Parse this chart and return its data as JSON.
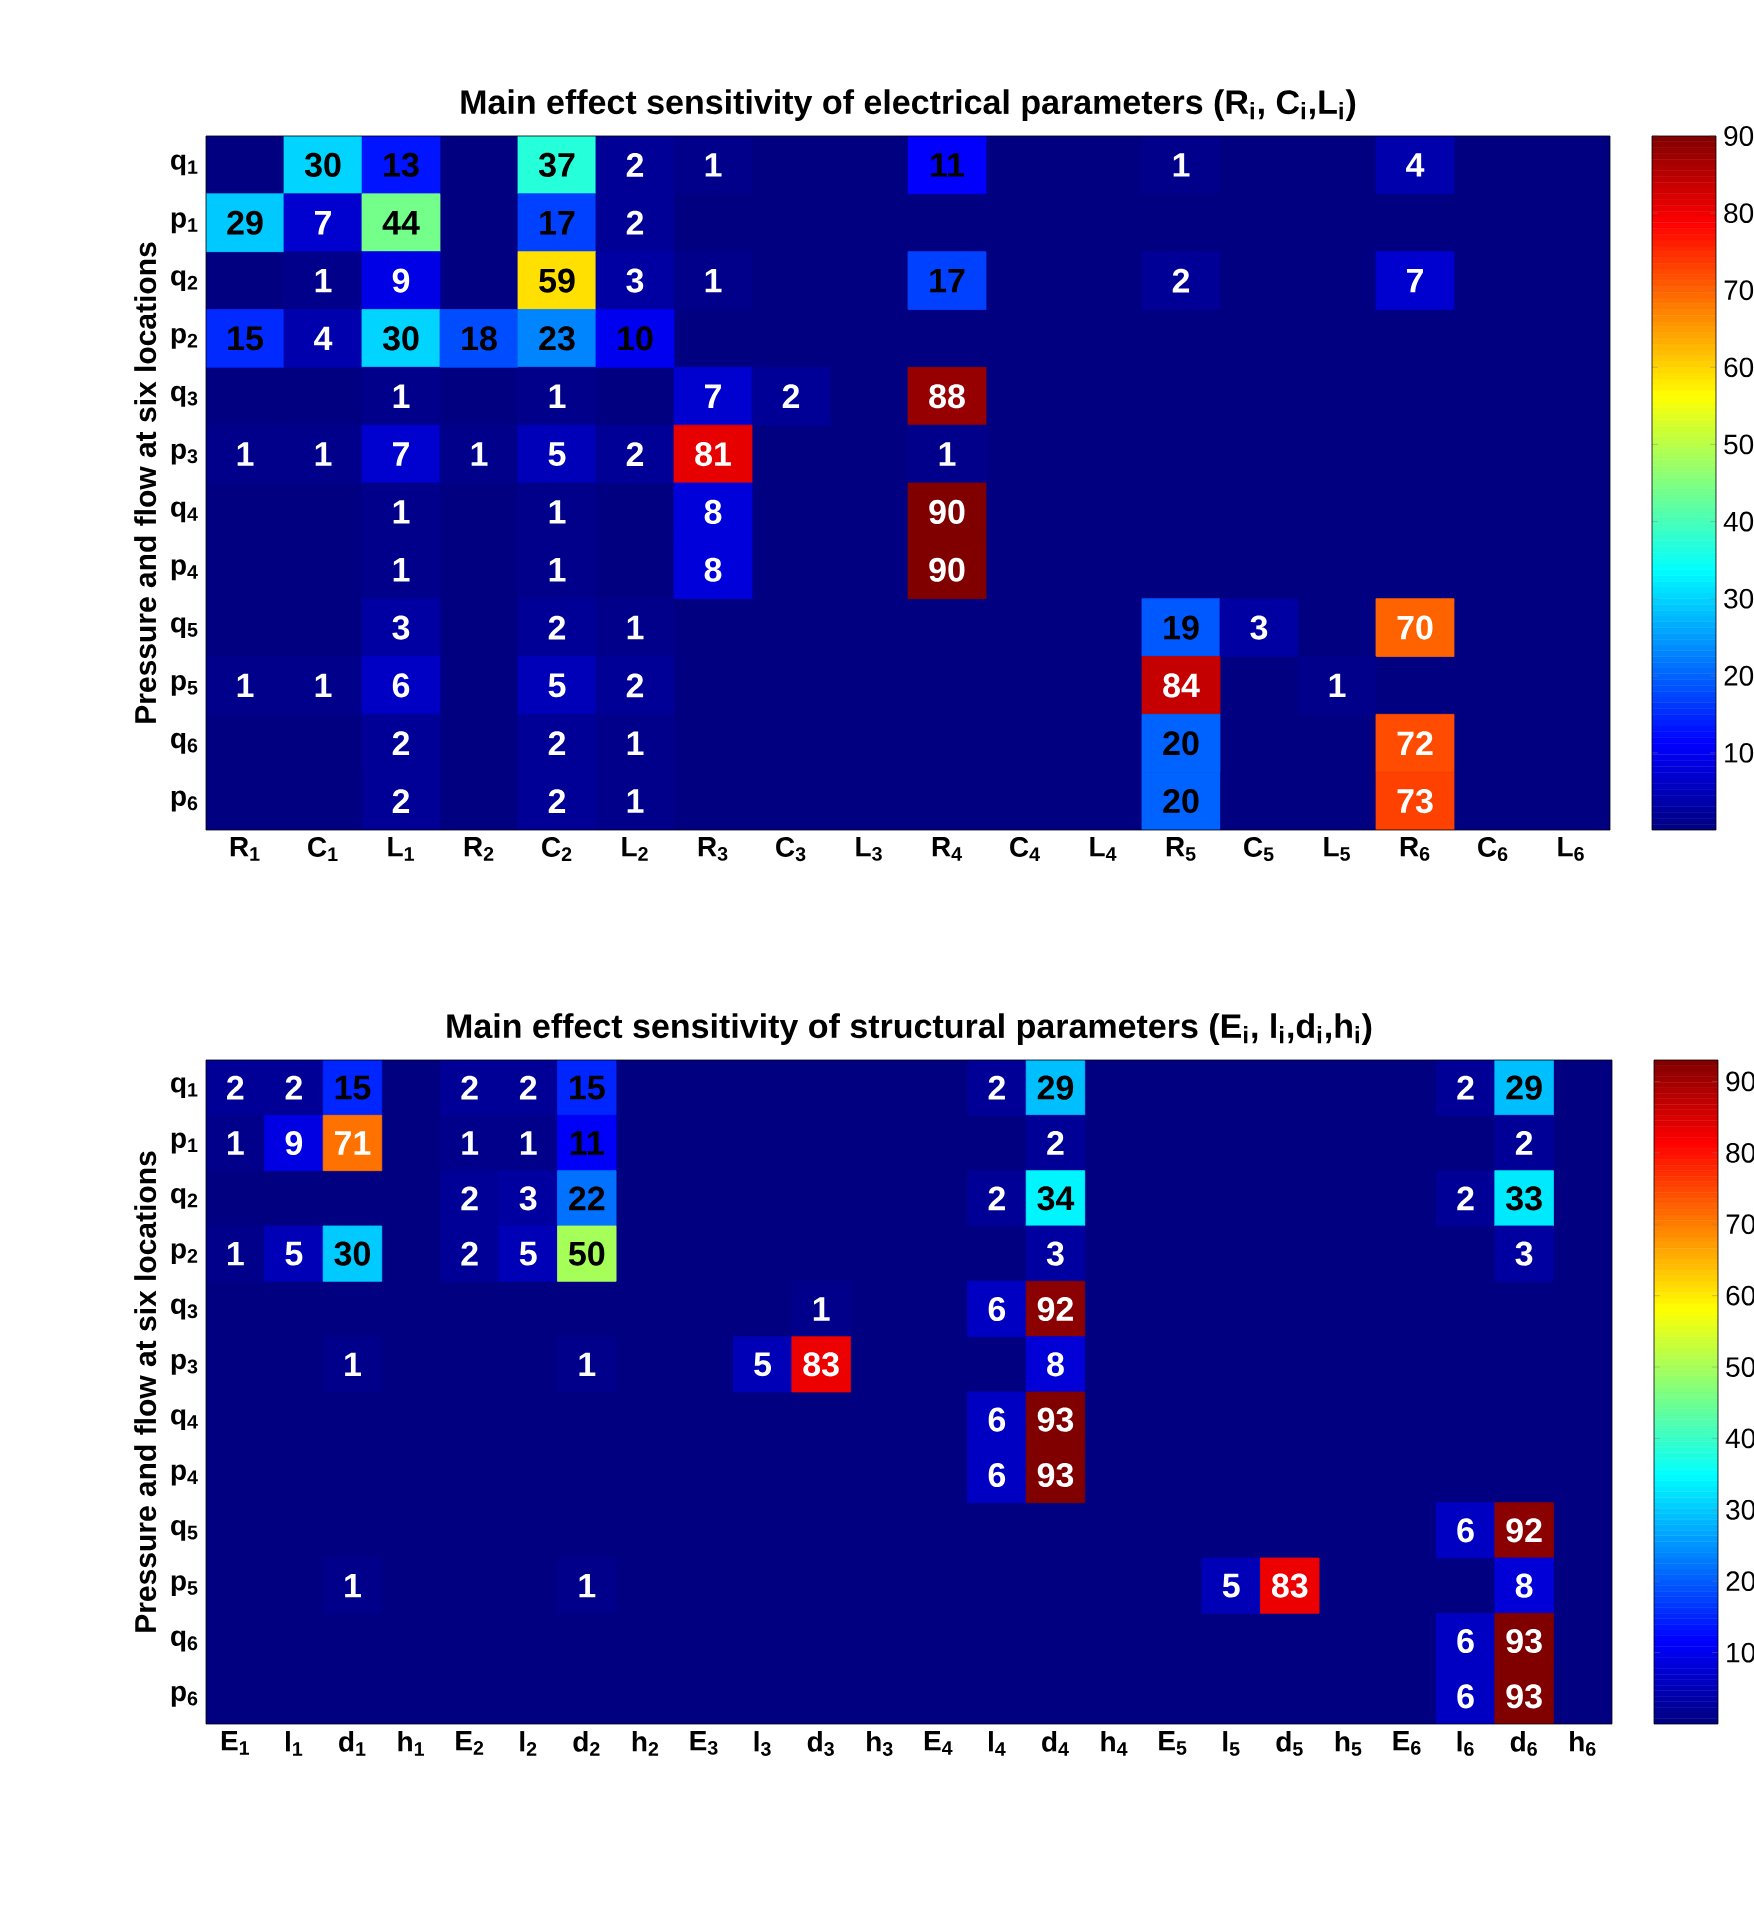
{
  "chart_data": [
    {
      "type": "heatmap",
      "title": "Main effect sensitivity of electrical parameters (R$_{i}$, C$_{i}$,L$_{i}$)",
      "ylabel": "Pressure and flow at six locations",
      "categories": [
        "R$_{1}$",
        "C$_{1}$",
        "L$_{1}$",
        "R$_{2}$",
        "C$_{2}$",
        "L$_{2}$",
        "R$_{3}$",
        "C$_{3}$",
        "L$_{3}$",
        "R$_{4}$",
        "C$_{4}$",
        "L$_{4}$",
        "R$_{5}$",
        "C$_{5}$",
        "L$_{5}$",
        "R$_{6}$",
        "C$_{6}$",
        "L$_{6}$"
      ],
      "y_categories": [
        "q$_{1}$",
        "p$_{1}$",
        "q$_{2}$",
        "p$_{2}$",
        "q$_{3}$",
        "p$_{3}$",
        "q$_{4}$",
        "p$_{4}$",
        "q$_{5}$",
        "p$_{5}$",
        "q$_{6}$",
        "p$_{6}$"
      ],
      "cells": [
        [
          null,
          30,
          13,
          null,
          37,
          2,
          1,
          null,
          null,
          11,
          null,
          null,
          1,
          null,
          null,
          4,
          null,
          null
        ],
        [
          29,
          7,
          44,
          null,
          17,
          2,
          null,
          null,
          null,
          null,
          null,
          null,
          null,
          null,
          null,
          null,
          null,
          null
        ],
        [
          null,
          1,
          9,
          null,
          59,
          3,
          1,
          null,
          null,
          17,
          null,
          null,
          2,
          null,
          null,
          7,
          null,
          null
        ],
        [
          15,
          4,
          30,
          18,
          23,
          10,
          null,
          null,
          null,
          null,
          null,
          null,
          null,
          null,
          null,
          null,
          null,
          null
        ],
        [
          null,
          null,
          1,
          null,
          1,
          null,
          7,
          2,
          null,
          88,
          null,
          null,
          null,
          null,
          null,
          null,
          null,
          null
        ],
        [
          1,
          1,
          7,
          1,
          5,
          2,
          81,
          null,
          null,
          1,
          null,
          null,
          null,
          null,
          null,
          null,
          null,
          null
        ],
        [
          null,
          null,
          1,
          null,
          1,
          null,
          8,
          null,
          null,
          90,
          null,
          null,
          null,
          null,
          null,
          null,
          null,
          null
        ],
        [
          null,
          null,
          1,
          null,
          1,
          null,
          8,
          null,
          null,
          90,
          null,
          null,
          null,
          null,
          null,
          null,
          null,
          null
        ],
        [
          null,
          null,
          3,
          null,
          2,
          1,
          null,
          null,
          null,
          null,
          null,
          null,
          19,
          3,
          null,
          70,
          null,
          null
        ],
        [
          1,
          1,
          6,
          null,
          5,
          2,
          null,
          null,
          null,
          null,
          null,
          null,
          84,
          null,
          1,
          null,
          null,
          null
        ],
        [
          null,
          null,
          2,
          null,
          2,
          1,
          null,
          null,
          null,
          null,
          null,
          null,
          20,
          null,
          null,
          72,
          null,
          null
        ],
        [
          null,
          null,
          2,
          null,
          2,
          1,
          null,
          null,
          null,
          null,
          null,
          null,
          20,
          null,
          null,
          73,
          null,
          null
        ]
      ],
      "data_labels": true,
      "clim": [
        0,
        90
      ],
      "cticks": [
        10,
        20,
        30,
        40,
        50,
        60,
        70,
        80,
        90
      ]
    },
    {
      "type": "heatmap",
      "title": "Main effect sensitivity of structural parameters (E$_{i}$, l$_{i}$,d$_{i}$,h$_{i}$)",
      "ylabel": "Pressure and flow at six locations",
      "categories": [
        "E$_{1}$",
        "l$_{1}$",
        "d$_{1}$",
        "h$_{1}$",
        "E$_{2}$",
        "l$_{2}$",
        "d$_{2}$",
        "h$_{2}$",
        "E$_{3}$",
        "l$_{3}$",
        "d$_{3}$",
        "h$_{3}$",
        "E$_{4}$",
        "l$_{4}$",
        "d$_{4}$",
        "h$_{4}$",
        "E$_{5}$",
        "l$_{5}$",
        "d$_{5}$",
        "h$_{5}$",
        "E$_{6}$",
        "l$_{6}$",
        "d$_{6}$",
        "h$_{6}$"
      ],
      "y_categories": [
        "q$_{1}$",
        "p$_{1}$",
        "q$_{2}$",
        "p$_{2}$",
        "q$_{3}$",
        "p$_{3}$",
        "q$_{4}$",
        "p$_{4}$",
        "q$_{5}$",
        "p$_{5}$",
        "q$_{6}$",
        "p$_{6}$"
      ],
      "cells": [
        [
          2,
          2,
          15,
          null,
          2,
          2,
          15,
          null,
          null,
          null,
          null,
          null,
          null,
          2,
          29,
          null,
          null,
          null,
          null,
          null,
          null,
          2,
          29,
          null
        ],
        [
          1,
          9,
          71,
          null,
          1,
          1,
          11,
          null,
          null,
          null,
          null,
          null,
          null,
          null,
          2,
          null,
          null,
          null,
          null,
          null,
          null,
          null,
          2,
          null
        ],
        [
          null,
          null,
          null,
          null,
          2,
          3,
          22,
          null,
          null,
          null,
          null,
          null,
          null,
          2,
          34,
          null,
          null,
          null,
          null,
          null,
          null,
          2,
          33,
          null
        ],
        [
          1,
          5,
          30,
          null,
          2,
          5,
          50,
          null,
          null,
          null,
          null,
          null,
          null,
          null,
          3,
          null,
          null,
          null,
          null,
          null,
          null,
          null,
          3,
          null
        ],
        [
          null,
          null,
          null,
          null,
          null,
          null,
          null,
          null,
          null,
          null,
          1,
          null,
          null,
          6,
          92,
          null,
          null,
          null,
          null,
          null,
          null,
          null,
          null,
          null
        ],
        [
          null,
          null,
          1,
          null,
          null,
          null,
          1,
          null,
          null,
          5,
          83,
          null,
          null,
          null,
          8,
          null,
          null,
          null,
          null,
          null,
          null,
          null,
          null,
          null
        ],
        [
          null,
          null,
          null,
          null,
          null,
          null,
          null,
          null,
          null,
          null,
          null,
          null,
          null,
          6,
          93,
          null,
          null,
          null,
          null,
          null,
          null,
          null,
          null,
          null
        ],
        [
          null,
          null,
          null,
          null,
          null,
          null,
          null,
          null,
          null,
          null,
          null,
          null,
          null,
          6,
          93,
          null,
          null,
          null,
          null,
          null,
          null,
          null,
          null,
          null
        ],
        [
          null,
          null,
          null,
          null,
          null,
          null,
          null,
          null,
          null,
          null,
          null,
          null,
          null,
          null,
          null,
          null,
          null,
          null,
          null,
          null,
          null,
          6,
          92,
          null
        ],
        [
          null,
          null,
          1,
          null,
          null,
          null,
          1,
          null,
          null,
          null,
          null,
          null,
          null,
          null,
          null,
          null,
          null,
          5,
          83,
          null,
          null,
          null,
          8,
          null
        ],
        [
          null,
          null,
          null,
          null,
          null,
          null,
          null,
          null,
          null,
          null,
          null,
          null,
          null,
          null,
          null,
          null,
          null,
          null,
          null,
          null,
          null,
          6,
          93,
          null
        ],
        [
          null,
          null,
          null,
          null,
          null,
          null,
          null,
          null,
          null,
          null,
          null,
          null,
          null,
          null,
          null,
          null,
          null,
          null,
          null,
          null,
          null,
          6,
          93,
          null
        ]
      ],
      "data_labels": true,
      "clim": [
        0,
        93
      ],
      "cticks": [
        10,
        20,
        30,
        40,
        50,
        60,
        70,
        80,
        90
      ]
    }
  ]
}
